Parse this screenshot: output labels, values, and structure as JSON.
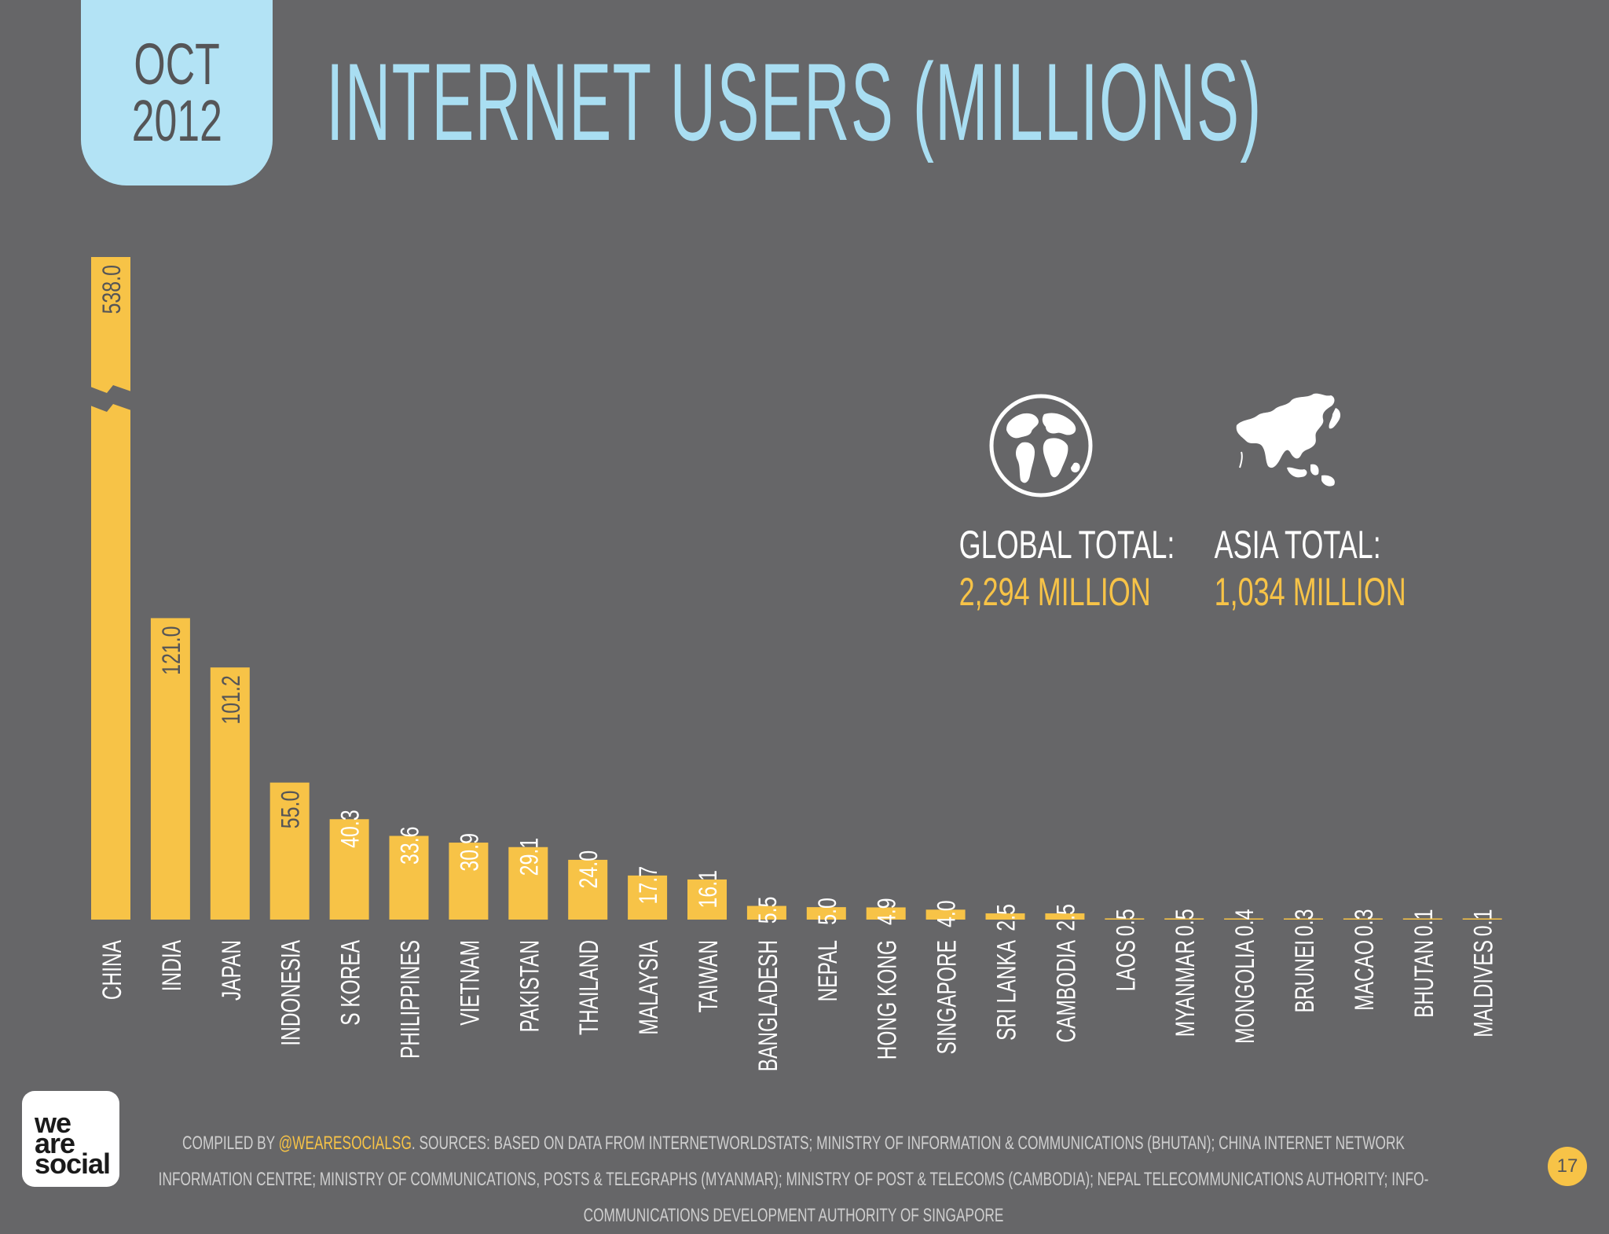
{
  "header": {
    "month": "OCT",
    "year": "2012",
    "title": "INTERNET USERS (MILLIONS)"
  },
  "stats": {
    "global": {
      "label": "GLOBAL TOTAL:",
      "value": "2,294 MILLION",
      "icon": "globe-icon"
    },
    "asia": {
      "label": "ASIA TOTAL:",
      "value": "1,034 MILLION",
      "icon": "asia-map-icon"
    }
  },
  "footer": {
    "prefix": "COMPILED BY ",
    "handle": "@WEARESOCIALSG",
    "sources": ". SOURCES: BASED ON DATA FROM INTERNETWORLDSTATS; MINISTRY OF INFORMATION & COMMUNICATIONS (BHUTAN); CHINA INTERNET NETWORK INFORMATION CENTRE; MINISTRY OF COMMUNICATIONS, POSTS & TELEGRAPHS (MYANMAR); MINISTRY OF POST & TELECOMS (CAMBODIA); NEPAL TELECOMMUNICATIONS AUTHORITY; INFO-COMMUNICATIONS DEVELOPMENT AUTHORITY OF SINGAPORE"
  },
  "logo": {
    "line1": "we",
    "line2": "are",
    "line3": "social"
  },
  "page_number": "17",
  "colors": {
    "background": "#666668",
    "bar": "#f7c347",
    "title": "#a9def2",
    "label": "#ffffff",
    "value_text": "#555557"
  },
  "chart_data": {
    "type": "bar",
    "title": "INTERNET USERS (MILLIONS)",
    "categories": [
      "CHINA",
      "INDIA",
      "JAPAN",
      "INDONESIA",
      "S KOREA",
      "PHILIPPINES",
      "VIETNAM",
      "PAKISTAN",
      "THAILAND",
      "MALAYSIA",
      "TAIWAN",
      "BANGLADESH",
      "NEPAL",
      "HONG KONG",
      "SINGAPORE",
      "SRI LANKA",
      "CAMBODIA",
      "LAOS",
      "MYANMAR",
      "MONGOLIA",
      "BRUNEI",
      "MACAO",
      "BHUTAN",
      "MALDIVES"
    ],
    "values": [
      538.0,
      121.0,
      101.2,
      55.0,
      40.3,
      33.6,
      30.9,
      29.1,
      24.0,
      17.7,
      16.1,
      5.5,
      5.0,
      4.9,
      4.0,
      2.5,
      2.5,
      0.5,
      0.5,
      0.4,
      0.3,
      0.3,
      0.1,
      0.1
    ],
    "value_labels": [
      "538.0",
      "121.0",
      "101.2",
      "55.0",
      "40.3",
      "33.6",
      "30.9",
      "29.1",
      "24.0",
      "17.7",
      "16.1",
      "5.5",
      "5.0",
      "4.9",
      "4.0",
      "2.5",
      "2.5",
      "0.5",
      "0.5",
      "0.4",
      "0.3",
      "0.3",
      "0.1",
      "0.1"
    ],
    "axis_break_on": "CHINA",
    "xlabel": "",
    "ylabel": "",
    "grid": false
  }
}
